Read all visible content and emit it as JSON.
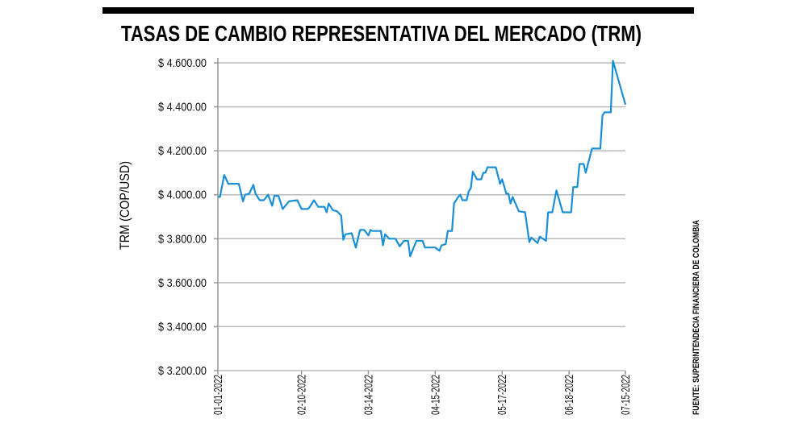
{
  "chart_data": {
    "type": "line",
    "title": "TASAS DE CAMBIO REPRESENTATIVA DEL MERCADO (TRM)",
    "ylabel": "TRM (COP/USD)",
    "xlabel": "",
    "source": "FUENTE: SUPERINTENDECIA FINANCIERA DE COLOMBIA",
    "ylim": [
      3200,
      4600
    ],
    "yticks": [
      3200,
      3400,
      3600,
      3800,
      4000,
      4200,
      4400,
      4600
    ],
    "ytick_labels": [
      "$ 3.200.00",
      "$ 3.400.00",
      "$ 3.600.00",
      "$ 3.800.00",
      "$ 4.000.00",
      "$ 4.200.00",
      "$ 4.400.00",
      "$ 4.600.00"
    ],
    "xlim": [
      "2022-01-01",
      "2022-07-15"
    ],
    "xticks": [
      "2022-01-01",
      "2022-02-10",
      "2022-03-14",
      "2022-04-15",
      "2022-05-17",
      "2022-06-18",
      "2022-07-15"
    ],
    "xtick_labels": [
      "01-01-2022",
      "02-10-2022",
      "03-14-2022",
      "04-15-2022",
      "05-17-2022",
      "06-18-2022",
      "07-15-2022"
    ],
    "grid": "horizontal",
    "line_color": "#1a8fd6",
    "x": [
      "2022-01-01",
      "2022-01-02",
      "2022-01-04",
      "2022-01-06",
      "2022-01-11",
      "2022-01-13",
      "2022-01-14",
      "2022-01-16",
      "2022-01-18",
      "2022-01-19",
      "2022-01-21",
      "2022-01-23",
      "2022-01-25",
      "2022-01-27",
      "2022-01-28",
      "2022-01-30",
      "2022-02-01",
      "2022-02-04",
      "2022-02-08",
      "2022-02-10",
      "2022-02-13",
      "2022-02-14",
      "2022-02-16",
      "2022-02-18",
      "2022-02-21",
      "2022-02-22",
      "2022-02-23",
      "2022-02-25",
      "2022-02-27",
      "2022-03-01",
      "2022-03-02",
      "2022-03-03",
      "2022-03-06",
      "2022-03-08",
      "2022-03-10",
      "2022-03-12",
      "2022-03-14",
      "2022-03-15",
      "2022-03-16",
      "2022-03-20",
      "2022-03-21",
      "2022-03-22",
      "2022-03-24",
      "2022-03-27",
      "2022-03-29",
      "2022-03-31",
      "2022-04-02",
      "2022-04-03",
      "2022-04-06",
      "2022-04-09",
      "2022-04-10",
      "2022-04-15",
      "2022-04-17",
      "2022-04-18",
      "2022-04-20",
      "2022-04-21",
      "2022-04-23",
      "2022-04-24",
      "2022-04-26",
      "2022-04-27",
      "2022-04-28",
      "2022-04-30",
      "2022-05-01",
      "2022-05-02",
      "2022-05-03",
      "2022-05-05",
      "2022-05-07",
      "2022-05-08",
      "2022-05-09",
      "2022-05-10",
      "2022-05-14",
      "2022-05-16",
      "2022-05-17",
      "2022-05-19",
      "2022-05-20",
      "2022-05-21",
      "2022-05-22",
      "2022-05-25",
      "2022-05-28",
      "2022-05-30",
      "2022-05-31",
      "2022-06-03",
      "2022-06-04",
      "2022-06-07",
      "2022-06-08",
      "2022-06-10",
      "2022-06-12",
      "2022-06-15",
      "2022-06-19",
      "2022-06-20",
      "2022-06-22",
      "2022-06-23",
      "2022-06-25",
      "2022-06-26",
      "2022-06-29",
      "2022-07-03",
      "2022-07-04",
      "2022-07-05",
      "2022-07-08",
      "2022-07-09",
      "2022-07-15"
    ],
    "values": [
      3990,
      3990,
      4090,
      4050,
      4050,
      3970,
      4000,
      4005,
      4045,
      4005,
      3975,
      3975,
      4000,
      3950,
      3995,
      3995,
      3935,
      3970,
      3975,
      3935,
      3935,
      3945,
      3975,
      3945,
      3945,
      3920,
      3960,
      3930,
      3925,
      3905,
      3795,
      3820,
      3825,
      3760,
      3840,
      3840,
      3815,
      3840,
      3835,
      3835,
      3770,
      3820,
      3800,
      3800,
      3765,
      3790,
      3790,
      3720,
      3790,
      3790,
      3760,
      3760,
      3745,
      3770,
      3775,
      3835,
      3835,
      3960,
      3990,
      4000,
      3975,
      3975,
      4015,
      4030,
      4105,
      4070,
      4070,
      4100,
      4100,
      4125,
      4125,
      4050,
      4070,
      4005,
      4005,
      3960,
      3990,
      3925,
      3920,
      3785,
      3805,
      3780,
      3810,
      3790,
      3920,
      3920,
      4020,
      3920,
      3920,
      4035,
      4035,
      4140,
      4140,
      4100,
      4210,
      4210,
      4360,
      4375,
      4375,
      4610,
      4410
    ]
  }
}
